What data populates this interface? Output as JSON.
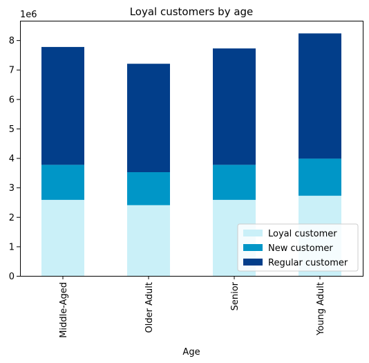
{
  "chart_data": {
    "type": "bar",
    "stacked": true,
    "title": "Loyal customers by age",
    "xlabel": "Age",
    "ylabel": "",
    "y_multiplier_label": "1e6",
    "ylim": [
      0,
      8.66
    ],
    "yticks": [
      "0",
      "1",
      "2",
      "3",
      "4",
      "5",
      "6",
      "7",
      "8"
    ],
    "categories": [
      "Middle-Aged",
      "Older Adult",
      "Senior",
      "Young Adult"
    ],
    "series": [
      {
        "name": "Loyal customer",
        "color": "#caf0f8",
        "values": [
          2.58,
          2.4,
          2.58,
          2.72
        ]
      },
      {
        "name": "New customer",
        "color": "#0096c7",
        "values": [
          1.19,
          1.12,
          1.19,
          1.26
        ]
      },
      {
        "name": "Regular customer",
        "color": "#023e8a",
        "values": [
          4.0,
          3.68,
          3.95,
          4.25
        ]
      }
    ],
    "legend_position": "lower-right",
    "grid": false
  }
}
